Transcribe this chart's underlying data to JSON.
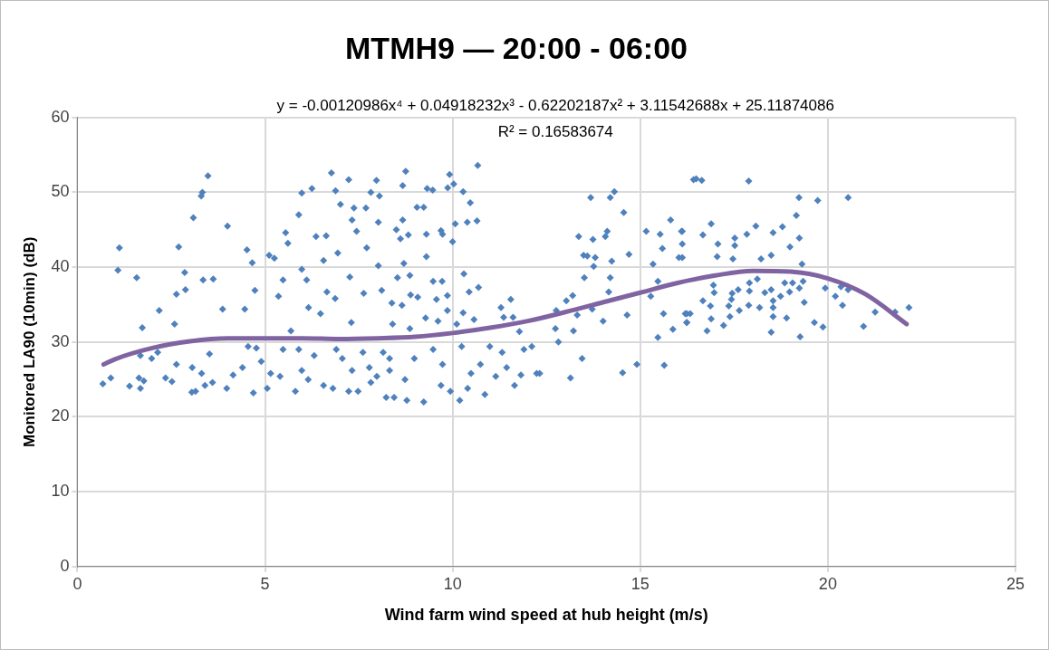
{
  "chart_data": {
    "type": "scatter",
    "title": "MTMH9 — 20:00 - 06:00",
    "xlabel": "Wind farm wind speed at hub height (m/s)",
    "ylabel": "Monitored LA90 (10min) (dB)",
    "annotations": [
      "y = -0.00120986x⁴ + 0.04918232x³ - 0.62202187x² + 3.11542688x + 25.11874086",
      "R² = 0.16583674"
    ],
    "xlim": [
      0,
      25
    ],
    "xticks": [
      0,
      5,
      10,
      15,
      20,
      25
    ],
    "ylim": [
      0,
      60
    ],
    "yticks": [
      0,
      10,
      20,
      30,
      40,
      50,
      60
    ],
    "grid": true,
    "marker": "diamond",
    "series": [
      {
        "color": "#4f81bd",
        "x": [
          1.12,
          1.08,
          1.58,
          1.73,
          2.18,
          2.59,
          2.64,
          2.7,
          2.88,
          2.86,
          3.09,
          3.3,
          3.33,
          3.48,
          3.35,
          3.62,
          4.0,
          3.87,
          4.46,
          4.52,
          4.66,
          4.73,
          5.11,
          5.25,
          5.36,
          5.48,
          5.55,
          5.61,
          5.9,
          5.98,
          6.25,
          6.36,
          6.63,
          6.77,
          6.88,
          7.01,
          7.23,
          7.32,
          7.37,
          7.69,
          7.82,
          7.97,
          8.02,
          8.05,
          7.44,
          7.71,
          6.94,
          6.56,
          5.98,
          6.11,
          6.65,
          6.87,
          7.26,
          8.02,
          7.63,
          7.3,
          6.16,
          6.48,
          5.69,
          0.68,
          0.89,
          1.39,
          1.64,
          1.68,
          1.77,
          1.68,
          1.98,
          2.14,
          2.35,
          2.52,
          2.64,
          3.05,
          3.15,
          3.06,
          3.4,
          3.31,
          3.52,
          3.6,
          3.98,
          4.15,
          4.4,
          4.55,
          4.77,
          4.69,
          4.9,
          5.06,
          5.15,
          5.4,
          5.48,
          5.81,
          5.9,
          5.98,
          6.15,
          6.31,
          6.56,
          6.81,
          6.9,
          7.06,
          7.23,
          7.32,
          7.48,
          7.61,
          7.78,
          7.82,
          7.98,
          8.23,
          8.32,
          8.75,
          8.67,
          9.32,
          9.47,
          9.92,
          9.87,
          10.03,
          10.67,
          10.28,
          10.47,
          9.05,
          9.23,
          8.67,
          8.5,
          8.82,
          8.61,
          9.3,
          9.69,
          9.73,
          10.07,
          10.39,
          10.65,
          10.0,
          9.3,
          8.7,
          10.3,
          8.86,
          8.53,
          9.48,
          9.72,
          8.11,
          10.69,
          10.44,
          8.88,
          9.07,
          9.57,
          9.86,
          8.38,
          8.65,
          11.55,
          11.29,
          10.28,
          9.28,
          9.86,
          8.4,
          11.36,
          11.61,
          10.57,
          10.11,
          8.86,
          9.61,
          11.78,
          8.15,
          8.32,
          8.44,
          8.78,
          9.23,
          8.98,
          8.73,
          9.48,
          9.69,
          9.94,
          10.19,
          9.73,
          10.24,
          10.49,
          10.4,
          10.74,
          10.86,
          10.99,
          11.15,
          11.32,
          11.44,
          11.65,
          11.82,
          11.9,
          12.11,
          12.24,
          12.32,
          12.76,
          12.82,
          12.74,
          13.03,
          13.2,
          13.22,
          13.45,
          13.14,
          13.36,
          13.49,
          13.59,
          13.51,
          13.68,
          13.74,
          13.8,
          13.76,
          13.32,
          13.72,
          14.07,
          14.12,
          14.2,
          14.31,
          14.24,
          14.2,
          14.16,
          14.01,
          14.56,
          14.7,
          14.65,
          14.53,
          14.91,
          15.16,
          15.34,
          15.28,
          15.47,
          15.47,
          15.64,
          15.53,
          15.81,
          15.59,
          16.1,
          16.12,
          16.03,
          15.87,
          16.24,
          16.2,
          16.42,
          15.62,
          16.49,
          16.64,
          17.89,
          19.23,
          19.73,
          20.54,
          19.16,
          16.89,
          18.08,
          18.79,
          16.12,
          16.67,
          17.84,
          18.54,
          17.52,
          19.24,
          17.07,
          17.52,
          18.99,
          16.12,
          17.05,
          17.47,
          18.22,
          18.49,
          19.31,
          16.95,
          16.97,
          17.91,
          18.12,
          17.61,
          17.45,
          17.91,
          18.32,
          18.85,
          19.06,
          19.34,
          19.24,
          18.98,
          18.49,
          18.74,
          18.54,
          19.93,
          20.35,
          20.54,
          16.67,
          19.37,
          17.43,
          16.87,
          17.89,
          18.18,
          17.36,
          17.64,
          18.54,
          20.2,
          20.39,
          16.24,
          16.33,
          16.24,
          16.89,
          17.39,
          18.54,
          18.9,
          21.26,
          21.79,
          22.16,
          16.78,
          17.22,
          18.49,
          19.26,
          19.64,
          19.87,
          20.95
        ],
        "values": [
          42.6,
          39.6,
          38.6,
          31.9,
          34.2,
          32.4,
          36.4,
          42.7,
          37.0,
          39.3,
          46.6,
          49.5,
          50.0,
          52.2,
          38.3,
          38.4,
          45.5,
          34.4,
          34.4,
          42.3,
          40.6,
          36.9,
          41.6,
          41.2,
          36.1,
          38.3,
          44.6,
          43.2,
          47.0,
          49.9,
          50.5,
          44.1,
          44.2,
          52.6,
          50.2,
          48.4,
          51.7,
          46.3,
          47.9,
          47.9,
          50.0,
          51.6,
          46.0,
          49.5,
          44.8,
          42.6,
          41.9,
          40.9,
          39.7,
          38.3,
          36.7,
          35.8,
          38.7,
          40.2,
          36.5,
          32.6,
          34.6,
          33.8,
          31.5,
          24.4,
          25.2,
          24.1,
          25.2,
          23.8,
          24.8,
          28.2,
          27.8,
          28.6,
          25.2,
          24.7,
          27.0,
          23.3,
          23.4,
          26.6,
          24.2,
          25.8,
          28.4,
          24.6,
          23.8,
          25.6,
          26.6,
          29.4,
          29.2,
          23.2,
          27.4,
          23.8,
          25.8,
          25.4,
          29.0,
          23.4,
          29.0,
          26.2,
          25.0,
          28.2,
          24.2,
          23.8,
          29.0,
          27.8,
          23.4,
          26.2,
          23.4,
          28.6,
          26.6,
          24.6,
          25.4,
          22.6,
          27.8,
          52.8,
          50.9,
          50.5,
          50.3,
          52.4,
          50.6,
          51.1,
          53.6,
          50.1,
          48.6,
          48.0,
          48.0,
          46.3,
          45.0,
          44.3,
          43.8,
          44.4,
          44.9,
          44.4,
          45.8,
          46.0,
          46.2,
          43.4,
          41.4,
          40.5,
          39.1,
          38.9,
          38.6,
          38.1,
          38.1,
          36.9,
          37.3,
          36.7,
          36.3,
          36.0,
          35.7,
          36.2,
          35.2,
          34.9,
          35.7,
          34.6,
          33.9,
          33.2,
          34.2,
          32.4,
          33.3,
          33.3,
          33.0,
          32.4,
          31.8,
          32.8,
          31.4,
          28.6,
          26.2,
          22.6,
          22.2,
          22.0,
          27.8,
          25.0,
          29.0,
          24.2,
          23.4,
          22.2,
          27.0,
          29.4,
          25.8,
          23.8,
          27.0,
          23.0,
          29.4,
          25.4,
          28.6,
          26.6,
          24.2,
          25.6,
          29.0,
          29.4,
          25.8,
          25.8,
          34.2,
          30.0,
          31.8,
          35.5,
          36.2,
          31.5,
          27.8,
          25.2,
          44.1,
          41.6,
          41.5,
          38.6,
          49.3,
          43.7,
          41.3,
          40.1,
          33.6,
          34.4,
          44.1,
          44.8,
          49.3,
          50.1,
          40.8,
          38.6,
          36.7,
          32.8,
          47.3,
          41.7,
          33.6,
          25.9,
          27.0,
          44.8,
          40.4,
          36.1,
          38.1,
          30.6,
          26.9,
          44.4,
          46.3,
          42.5,
          44.8,
          43.1,
          41.3,
          31.7,
          32.6,
          33.8,
          51.7,
          33.8,
          51.8,
          51.6,
          51.5,
          49.3,
          48.9,
          49.3,
          46.9,
          45.8,
          45.5,
          45.4,
          44.8,
          44.3,
          44.4,
          44.6,
          43.9,
          43.9,
          43.1,
          42.9,
          42.7,
          41.3,
          41.4,
          41.1,
          41.1,
          41.6,
          40.4,
          37.6,
          36.6,
          37.9,
          38.4,
          37.0,
          36.5,
          36.8,
          36.6,
          37.9,
          37.9,
          38.1,
          37.2,
          36.7,
          37.0,
          36.1,
          35.5,
          37.2,
          37.4,
          37.0,
          35.5,
          35.3,
          35.7,
          34.8,
          34.9,
          34.6,
          34.8,
          34.2,
          34.6,
          36.1,
          34.9,
          33.8,
          33.8,
          32.6,
          33.1,
          33.4,
          33.4,
          33.2,
          34.0,
          34.0,
          34.6,
          31.5,
          32.2,
          31.3,
          30.7,
          32.6,
          32.0,
          32.1
        ]
      },
      {
        "type": "line",
        "color": "#8064a2",
        "marker": "none",
        "x": [
          0.7,
          1,
          2,
          3,
          4,
          5,
          6,
          7,
          8,
          9,
          10,
          11,
          12,
          13,
          14,
          15,
          16,
          17,
          18,
          19,
          20,
          21,
          22.1
        ],
        "values": [
          27.0,
          27.7,
          29.2,
          30.1,
          30.5,
          30.5,
          30.5,
          30.4,
          30.5,
          30.7,
          31.2,
          31.9,
          32.8,
          34.0,
          35.3,
          36.6,
          37.9,
          38.9,
          39.5,
          39.4,
          38.5,
          36.4,
          32.4
        ]
      }
    ]
  }
}
